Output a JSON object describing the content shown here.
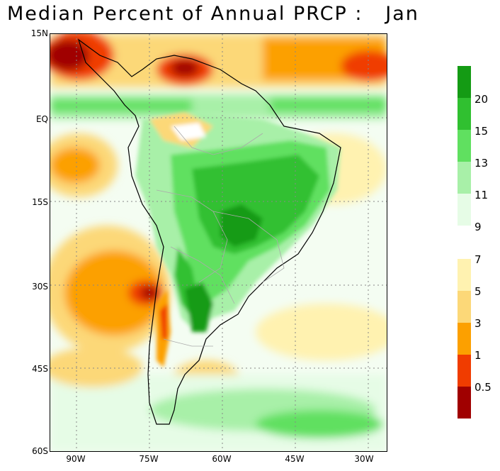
{
  "title": "Median Percent of Annual PRCP :   Jan",
  "lat_labels": [
    "15N",
    "EQ",
    "15S",
    "30S",
    "45S",
    "60S"
  ],
  "lon_labels": [
    "90W",
    "75W",
    "60W",
    "45W",
    "30W"
  ],
  "colorbar": {
    "upper": [
      {
        "color": "#149b14",
        "label": "20"
      },
      {
        "color": "#30c030",
        "label": "15"
      },
      {
        "color": "#60e060",
        "label": "13"
      },
      {
        "color": "#a8f0a8",
        "label": "11"
      },
      {
        "color": "#e6fce6",
        "label": "9"
      }
    ],
    "lower": [
      {
        "color": "#fff2b0",
        "label": "7"
      },
      {
        "color": "#fcd878",
        "label": "5"
      },
      {
        "color": "#fca000",
        "label": "3"
      },
      {
        "color": "#f03c00",
        "label": "1"
      },
      {
        "color": "#a00000",
        "label": "0.5"
      }
    ]
  }
}
